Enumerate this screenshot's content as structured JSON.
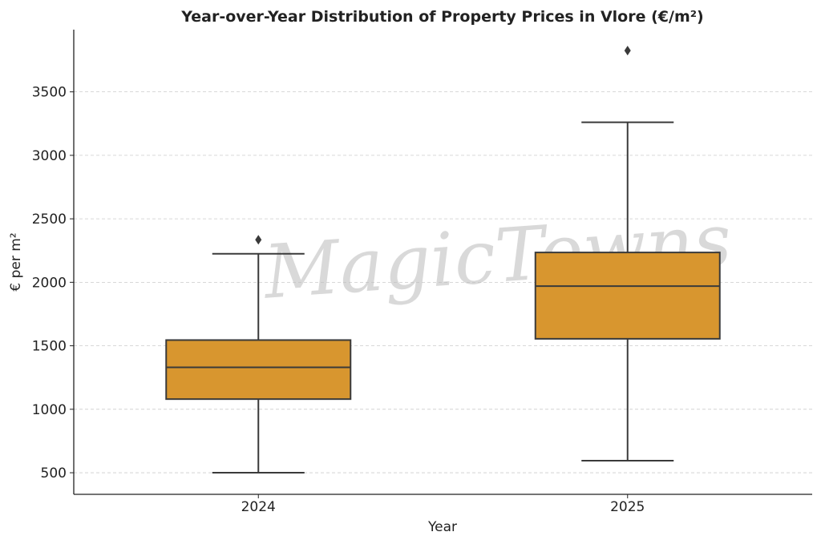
{
  "chart_data": {
    "type": "box",
    "title": "Year-over-Year Distribution of Property Prices in Vlore (€/m²)",
    "xlabel": "Year",
    "ylabel": "€ per m²",
    "categories": [
      "2024",
      "2025"
    ],
    "series": [
      {
        "category": "2024",
        "whisker_low": 500,
        "q1": 1080,
        "median": 1330,
        "q3": 1545,
        "whisker_high": 2225,
        "outliers": [
          2335
        ]
      },
      {
        "category": "2025",
        "whisker_low": 595,
        "q1": 1555,
        "median": 1970,
        "q3": 2235,
        "whisker_high": 3260,
        "outliers": [
          3825
        ]
      }
    ],
    "ylim": [
      330,
      3990
    ],
    "yticks": [
      500,
      1000,
      1500,
      2000,
      2500,
      3000,
      3500
    ],
    "grid": "y-dashed",
    "box_color": "#D8962F",
    "line_color": "#3a3a3a"
  },
  "watermark": "MagicTowns"
}
